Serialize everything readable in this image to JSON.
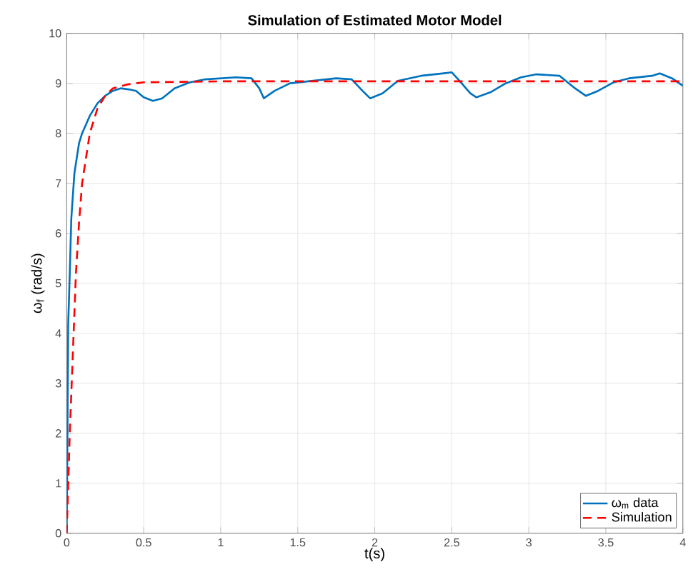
{
  "chart_data": {
    "type": "line",
    "title": "Simulation of Estimated Motor Model",
    "xlabel": "t(s)",
    "ylabel": "ω$_{f}$ (rad/s)",
    "xlim": [
      0,
      4
    ],
    "ylim": [
      0,
      10
    ],
    "xticks": [
      0,
      0.5,
      1,
      1.5,
      2,
      2.5,
      3,
      3.5,
      4
    ],
    "yticks": [
      0,
      1,
      2,
      3,
      4,
      5,
      6,
      7,
      8,
      9,
      10
    ],
    "grid": true,
    "legend": "bottom right",
    "series": [
      {
        "name": "ω$_{m}$ data",
        "color": "#0072bd",
        "line_style": "solid",
        "x": [
          0,
          0.005,
          0.01,
          0.02,
          0.03,
          0.05,
          0.08,
          0.1,
          0.15,
          0.2,
          0.25,
          0.3,
          0.35,
          0.4,
          0.45,
          0.5,
          0.56,
          0.62,
          0.7,
          0.8,
          0.9,
          1.0,
          1.1,
          1.2,
          1.25,
          1.28,
          1.35,
          1.45,
          1.6,
          1.75,
          1.85,
          1.92,
          1.97,
          2.05,
          2.15,
          2.3,
          2.45,
          2.5,
          2.55,
          2.62,
          2.66,
          2.75,
          2.85,
          2.95,
          3.05,
          3.2,
          3.3,
          3.37,
          3.45,
          3.55,
          3.65,
          3.8,
          3.85,
          3.93,
          4.0
        ],
        "values": [
          0,
          2,
          4.2,
          5.2,
          6.3,
          7.2,
          7.8,
          8.0,
          8.35,
          8.6,
          8.75,
          8.85,
          8.9,
          8.88,
          8.85,
          8.72,
          8.65,
          8.7,
          8.9,
          9.02,
          9.08,
          9.1,
          9.12,
          9.1,
          8.9,
          8.7,
          8.85,
          9.0,
          9.05,
          9.1,
          9.08,
          8.85,
          8.7,
          8.8,
          9.05,
          9.15,
          9.2,
          9.22,
          9.05,
          8.8,
          8.72,
          8.82,
          9.0,
          9.12,
          9.18,
          9.15,
          8.9,
          8.75,
          8.85,
          9.02,
          9.1,
          9.15,
          9.2,
          9.1,
          8.95
        ]
      },
      {
        "name": "Simulation",
        "color": "#ff0000",
        "line_style": "dashed",
        "x": [
          0,
          0.02,
          0.04,
          0.06,
          0.08,
          0.1,
          0.15,
          0.2,
          0.25,
          0.3,
          0.4,
          0.5,
          1,
          4
        ],
        "values": [
          0,
          2,
          3.6,
          5.2,
          6.2,
          7,
          8.0,
          8.5,
          8.75,
          8.9,
          8.98,
          9.02,
          9.04,
          9.04
        ]
      }
    ]
  }
}
